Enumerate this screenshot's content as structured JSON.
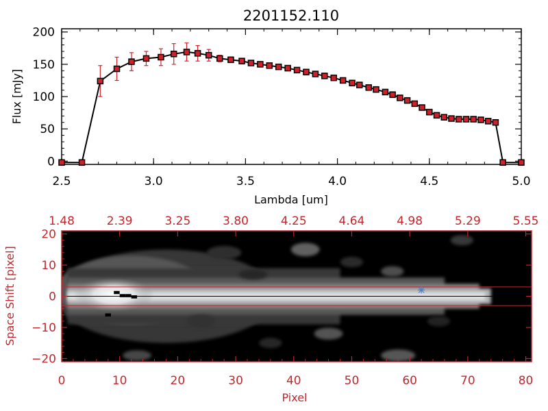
{
  "colors": {
    "axis_black": "#000000",
    "axis_red": "#c1272d",
    "point_red": "#d0202a",
    "error_red": "#d0202a",
    "marker_blue": "#4a7fd0"
  },
  "chart_data": [
    {
      "type": "line",
      "title": "2201152.110",
      "xlabel": "Lambda [um]",
      "ylabel": "Flux [mJy]",
      "xlim": [
        2.5,
        5.0
      ],
      "ylim": [
        -5,
        205
      ],
      "xticks": [
        2.5,
        3.0,
        3.5,
        4.0,
        4.5,
        5.0
      ],
      "xtick_labels": [
        "2.5",
        "3.0",
        "3.5",
        "4.0",
        "4.5",
        "5.0"
      ],
      "yticks": [
        0,
        50,
        100,
        150,
        200
      ],
      "ytick_labels": [
        "0",
        "50",
        "100",
        "150",
        "200"
      ],
      "grid": false,
      "series": [
        {
          "x": [
            2.5,
            2.61,
            2.71,
            2.8,
            2.88,
            2.96,
            3.04,
            3.11,
            3.18,
            3.24,
            3.3,
            3.36,
            3.42,
            3.48,
            3.53,
            3.58,
            3.63,
            3.68,
            3.73,
            3.78,
            3.83,
            3.88,
            3.93,
            3.98,
            4.03,
            4.08,
            4.12,
            4.17,
            4.21,
            4.26,
            4.3,
            4.34,
            4.38,
            4.42,
            4.46,
            4.5,
            4.54,
            4.58,
            4.62,
            4.66,
            4.7,
            4.74,
            4.78,
            4.82,
            4.86,
            4.9,
            5.0
          ],
          "y": [
            -2,
            -2,
            124,
            143,
            154,
            159,
            161,
            166,
            169,
            167,
            164,
            159,
            157,
            155,
            152,
            150,
            148,
            146,
            144,
            141,
            138,
            135,
            132,
            129,
            125,
            121,
            118,
            114,
            111,
            107,
            103,
            98,
            94,
            89,
            83,
            76,
            71,
            68,
            66,
            65,
            65,
            65,
            64,
            62,
            60,
            -2,
            -2
          ],
          "yerr": [
            0,
            0,
            24,
            18,
            14,
            11,
            13,
            16,
            14,
            12,
            9,
            5,
            3,
            3,
            2,
            2,
            2,
            2,
            2,
            2,
            2,
            2,
            2,
            2,
            2,
            2,
            2,
            2,
            2,
            2,
            2,
            2,
            2,
            2,
            2,
            2,
            2,
            2,
            2,
            2,
            2,
            2,
            2,
            2,
            2,
            0,
            0
          ]
        }
      ]
    },
    {
      "type": "heatmap",
      "xlabel": "Pixel",
      "ylabel": "Space Shift [pixel]",
      "xlim": [
        0,
        81
      ],
      "ylim": [
        -21,
        21
      ],
      "xticks": [
        0,
        10,
        20,
        30,
        40,
        50,
        60,
        70,
        80
      ],
      "xtick_labels": [
        "0",
        "10",
        "20",
        "30",
        "40",
        "50",
        "60",
        "70",
        "80"
      ],
      "top_tick_labels": [
        "1.48",
        "2.39",
        "3.25",
        "3.80",
        "4.25",
        "4.64",
        "4.98",
        "5.29",
        "5.55"
      ],
      "yticks": [
        -20,
        -10,
        0,
        10,
        20
      ],
      "ytick_labels": [
        "−20",
        "−10",
        "0",
        "10",
        "20"
      ],
      "guide_lines_y": [
        3,
        0,
        -3
      ],
      "marker": {
        "x": 62,
        "y": 2
      },
      "blobs": [
        {
          "x": 42,
          "y": 15,
          "w": 4,
          "h": 3,
          "v": 0.38
        },
        {
          "x": 46,
          "y": -12,
          "w": 4,
          "h": 2.5,
          "v": 0.32
        },
        {
          "x": 58,
          "y": -19,
          "w": 5,
          "h": 2.5,
          "v": 0.34
        },
        {
          "x": 57,
          "y": 8,
          "w": 3,
          "h": 2,
          "v": 0.3
        },
        {
          "x": 69,
          "y": 18,
          "w": 3,
          "h": 2,
          "v": 0.22
        },
        {
          "x": 28,
          "y": 14,
          "w": 5,
          "h": 3,
          "v": 0.18
        },
        {
          "x": 24,
          "y": -8,
          "w": 4,
          "h": 3,
          "v": 0.2
        },
        {
          "x": 36,
          "y": -15,
          "w": 3,
          "h": 2,
          "v": 0.15
        },
        {
          "x": 13,
          "y": -19,
          "w": 4,
          "h": 2,
          "v": 0.28
        },
        {
          "x": 50,
          "y": 11,
          "w": 3,
          "h": 2,
          "v": 0.16
        },
        {
          "x": 65,
          "y": -8,
          "w": 3,
          "h": 2,
          "v": 0.14
        },
        {
          "x": 33,
          "y": 7,
          "w": 4,
          "h": 2,
          "v": 0.15
        }
      ]
    }
  ]
}
